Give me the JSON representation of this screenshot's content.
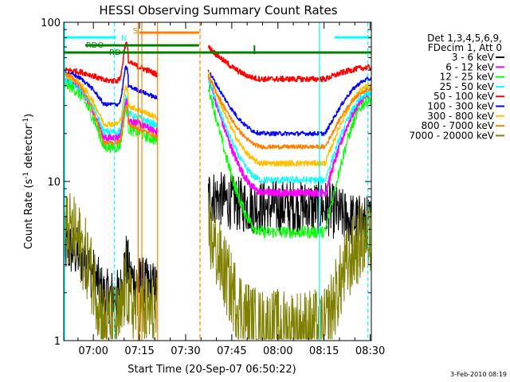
{
  "chart_data": {
    "type": "line",
    "title": "HESSI Observing Summary Count Rates",
    "xlabel": "Start Time (20-Sep-07 06:50:22)",
    "ylabel_main": "Count Rate (s",
    "ylabel_sup": "-1",
    "ylabel_mid": " detector",
    "ylabel_sup2": "-1",
    "ylabel_end": ")",
    "yscale": "log",
    "ylim": [
      1,
      100
    ],
    "xlim_minutes": [
      0,
      100
    ],
    "x_tick_labels": [
      "07:00",
      "07:15",
      "07:30",
      "07:45",
      "08:00",
      "08:15",
      "08:30"
    ],
    "x_tick_minutes": [
      9.63,
      24.63,
      39.63,
      54.63,
      69.63,
      84.63,
      99.63
    ],
    "y_tick_labels": [
      "1",
      "10",
      "100"
    ],
    "y_tick_values": [
      1,
      10,
      100
    ],
    "legend_header": [
      "Det 1,3,4,5,6,9,",
      "FDecim 1, Att 0"
    ],
    "series": [
      {
        "name": "3 - 6 keV",
        "color": "#000000",
        "values": [
          3.8,
          1.9,
          8.2,
          6.9,
          5.5
        ]
      },
      {
        "name": "6 - 12 keV",
        "color": "#ff00ff",
        "values": [
          44.2,
          18.8,
          45.0,
          8.5,
          35.0
        ]
      },
      {
        "name": "12 - 25 keV",
        "color": "#00ff00",
        "values": [
          40.5,
          16.5,
          40.0,
          4.8,
          33.0
        ]
      },
      {
        "name": "25 - 50 keV",
        "color": "#00ffff",
        "values": [
          43.3,
          20.5,
          44.0,
          10.2,
          36.0
        ]
      },
      {
        "name": "50 - 100 keV",
        "color": "#ff0000",
        "values": [
          50.0,
          43.0,
          70.0,
          44.0,
          52.0
        ]
      },
      {
        "name": "100 - 300 keV",
        "color": "#0000ff",
        "values": [
          48.0,
          30.5,
          50.0,
          20.0,
          44.0
        ]
      },
      {
        "name": "300 - 800 keV",
        "color": "#ffc000",
        "values": [
          46.0,
          23.0,
          48.0,
          13.0,
          40.0
        ]
      },
      {
        "name": "800 - 7000 keV",
        "color": "#ff8000",
        "values": [
          47.0,
          17.5,
          46.0,
          16.5,
          38.0
        ]
      },
      {
        "name": "7000 - 20000 keV",
        "color": "#808000",
        "values": [
          5.0,
          1.3,
          5.0,
          1.2,
          4.5
        ]
      }
    ],
    "flag_labels": [
      "N",
      "RDO",
      "RD4",
      "S"
    ]
  },
  "footer_date": "3-Feb-2010 08:19"
}
